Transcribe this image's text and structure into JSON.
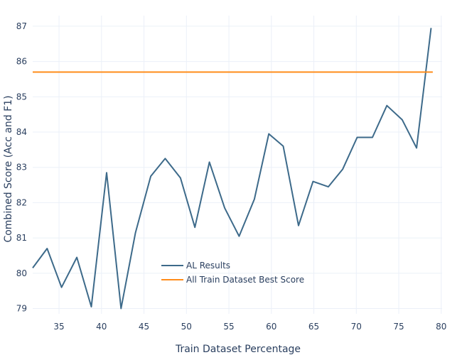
{
  "chart_data": {
    "type": "line",
    "xlabel": "Train Dataset Percentage",
    "ylabel": "Combined Score (Acc and F1)",
    "xlim": [
      31.9,
      80.1
    ],
    "ylim": [
      78.85,
      87.3
    ],
    "x_ticks": [
      35,
      40,
      45,
      50,
      55,
      60,
      65,
      70,
      75,
      80
    ],
    "y_ticks": [
      79,
      80,
      81,
      82,
      83,
      84,
      85,
      86,
      87
    ],
    "grid": true,
    "legend_position": "bottom-center",
    "series": [
      {
        "name": "AL Results",
        "color": "#3d6a8a",
        "x": [
          31.9,
          33.6,
          35.3,
          37.1,
          38.8,
          40.6,
          42.3,
          44.0,
          45.8,
          47.5,
          49.3,
          51.0,
          52.7,
          54.5,
          56.2,
          58.0,
          59.7,
          61.4,
          63.2,
          64.9,
          66.7,
          68.4,
          70.1,
          71.9,
          73.6,
          75.4,
          77.1,
          78.8
        ],
        "y": [
          80.15,
          80.7,
          79.6,
          80.45,
          79.05,
          82.85,
          79.0,
          81.15,
          82.75,
          83.25,
          82.7,
          81.3,
          83.15,
          81.85,
          81.05,
          82.1,
          83.95,
          83.6,
          81.35,
          82.6,
          82.45,
          82.95,
          83.85,
          83.85,
          84.75,
          84.35,
          83.55,
          86.95
        ]
      },
      {
        "name": "All Train Dataset Best Score",
        "color": "#ff8c1a",
        "x": [
          31.9,
          79.0
        ],
        "y": [
          85.7,
          85.7
        ]
      }
    ]
  }
}
